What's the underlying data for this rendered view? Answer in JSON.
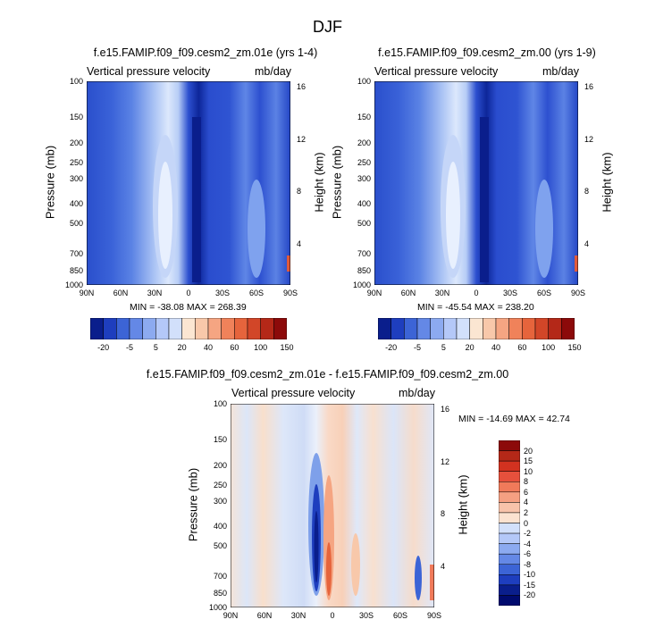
{
  "chart_data": [
    {
      "type": "heatmap",
      "title": "f.e15.FAMIP.f09_f09.cesm2_zm.01e (yrs 1-4)",
      "header_left": "Vertical pressure velocity",
      "header_right": "mb/day",
      "xlabel": "",
      "ylabel": "Pressure (mb)",
      "y2label": "Height (km)",
      "x_ticks": [
        "90N",
        "60N",
        "30N",
        "0",
        "30S",
        "60S",
        "90S"
      ],
      "y_ticks": [
        "100",
        "150",
        "200",
        "250",
        "300",
        "400",
        "500",
        "700",
        "850",
        "1000"
      ],
      "y2_ticks": [
        "16",
        "12",
        "8",
        "4"
      ],
      "stats": "MIN = -38.08  MAX = 268.39",
      "min": -38.08,
      "max": 268.39
    },
    {
      "type": "heatmap",
      "title": "f.e15.FAMIP.f09_f09.cesm2_zm.00 (yrs 1-9)",
      "header_left": "Vertical pressure velocity",
      "header_right": "mb/day",
      "xlabel": "",
      "ylabel": "Pressure (mb)",
      "y2label": "Height (km)",
      "x_ticks": [
        "90N",
        "60N",
        "30N",
        "0",
        "30S",
        "60S",
        "90S"
      ],
      "y_ticks": [
        "100",
        "150",
        "200",
        "250",
        "300",
        "400",
        "500",
        "700",
        "850",
        "1000"
      ],
      "y2_ticks": [
        "16",
        "12",
        "8",
        "4"
      ],
      "stats": "MIN = -45.54  MAX = 238.20",
      "min": -45.54,
      "max": 238.2
    },
    {
      "type": "heatmap",
      "title": "f.e15.FAMIP.f09_f09.cesm2_zm.01e - f.e15.FAMIP.f09_f09.cesm2_zm.00",
      "header_left": "Vertical pressure velocity",
      "header_right": "mb/day",
      "xlabel": "",
      "ylabel": "Pressure (mb)",
      "y2label": "Height (km)",
      "x_ticks": [
        "90N",
        "60N",
        "30N",
        "0",
        "30S",
        "60S",
        "90S"
      ],
      "y_ticks": [
        "100",
        "150",
        "200",
        "250",
        "300",
        "400",
        "500",
        "700",
        "850",
        "1000"
      ],
      "y2_ticks": [
        "16",
        "12",
        "8",
        "4"
      ],
      "stats": "MIN = -14.69  MAX = 42.74",
      "min": -14.69,
      "max": 42.74
    }
  ],
  "page_title": "DJF",
  "colorbar_top": {
    "labels": [
      "-20",
      "-5",
      "5",
      "20",
      "40",
      "60",
      "100",
      "150"
    ],
    "colors": [
      "#0a1e8c",
      "#1e3ebe",
      "#3c64d6",
      "#6488e6",
      "#8caaf0",
      "#b4c8f8",
      "#d2e0fb",
      "#fbe6d2",
      "#f8c8aa",
      "#f5a582",
      "#f0825a",
      "#e6643c",
      "#d24628",
      "#b42818",
      "#8c0a0a"
    ]
  },
  "colorbar_diff": {
    "labels": [
      "20",
      "15",
      "10",
      "8",
      "6",
      "4",
      "2",
      "0",
      "-2",
      "-4",
      "-6",
      "-8",
      "-10",
      "-15",
      "-20"
    ],
    "colors": [
      "#8c0a0a",
      "#b42818",
      "#d23220",
      "#e6503c",
      "#f07a5a",
      "#f5a082",
      "#f8c3aa",
      "#fbe2d0",
      "#d2e0fb",
      "#b4c8f8",
      "#8caaf0",
      "#6488e6",
      "#3c64d6",
      "#1e3ebe",
      "#0a1e8c",
      "#000a6e"
    ]
  }
}
